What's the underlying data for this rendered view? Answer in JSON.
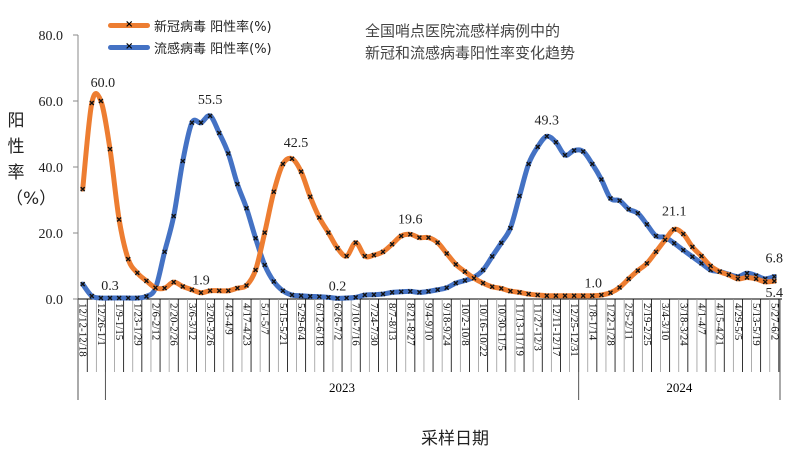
{
  "chart_data": {
    "type": "line",
    "title": [
      "全国哨点医院流感样病例中的",
      "新冠和流感病毒阳性率变化趋势"
    ],
    "xlabel": "采样日期",
    "ylabel": "阳性率（%）",
    "ylim": [
      0,
      80
    ],
    "yticks": [
      "0.0",
      "20.0",
      "40.0",
      "60.0",
      "80.0"
    ],
    "grid": false,
    "legend_position": "top-left",
    "x_tick_labels": [
      "12/12-12/18",
      "12/26-1/1",
      "1/9-1/15",
      "1/23-1/29",
      "2/6-2/12",
      "2/20-2/26",
      "3/6-3/12",
      "3/20-3/26",
      "4/3-4/9",
      "4/17-4/23",
      "5/1-5/7",
      "5/15-5/21",
      "5/29-6/4",
      "6/12-6/18",
      "6/26-7/2",
      "7/10-7/16",
      "7/24-7/30",
      "8/7-8/13",
      "8/21-8/27",
      "9/4-9/10",
      "9/18-9/24",
      "10/2-10/8",
      "10/16-10/22",
      "10/30-11/5",
      "11/13-11/19",
      "11/27-12/3",
      "12/11-12/17",
      "12/25-12/31",
      "1/8-1/14",
      "1/22-1/28",
      "2/5-2/11",
      "2/19-2/25",
      "3/4-3/10",
      "3/18-3/24",
      "4/1-4/7",
      "4/15-4/21",
      "4/29-5/5",
      "5/13-5/19",
      "5/27-6/2"
    ],
    "years": [
      "2023",
      "2024"
    ],
    "series": [
      {
        "name": "新冠病毒 阳性率(%)",
        "color": "#ED7D31",
        "values": [
          33.3,
          59.4,
          60.0,
          45.4,
          24.1,
          12.1,
          7.9,
          5.5,
          3.4,
          3.3,
          5.1,
          3.8,
          2.8,
          1.9,
          2.5,
          2.5,
          2.5,
          3.3,
          4.1,
          8.8,
          20.1,
          32.5,
          40.9,
          42.5,
          38.6,
          31.0,
          24.7,
          20.1,
          15.4,
          13.0,
          17.1,
          13.0,
          13.3,
          14.3,
          16.6,
          19.1,
          19.6,
          18.6,
          18.6,
          17.1,
          13.8,
          10.5,
          8.3,
          6.3,
          4.8,
          3.7,
          3.2,
          2.4,
          2.0,
          1.5,
          1.2,
          1.0,
          1.0,
          1.0,
          1.0,
          1.0,
          1.0,
          1.2,
          1.9,
          3.5,
          6.1,
          8.6,
          10.8,
          14.3,
          17.9,
          21.1,
          19.7,
          15.8,
          13.0,
          10.0,
          8.3,
          7.3,
          6.1,
          6.5,
          6.1,
          5.2,
          5.4
        ],
        "data_labels": [
          {
            "index": 2,
            "text": "60.0"
          },
          {
            "index": 13,
            "text": "1.9"
          },
          {
            "index": 23,
            "text": "42.5"
          },
          {
            "index": 36,
            "text": "19.6"
          },
          {
            "index": 55,
            "text": "1.0"
          },
          {
            "index": 65,
            "text": "21.1"
          },
          {
            "index": 76,
            "text": "5.4"
          }
        ]
      },
      {
        "name": "流感病毒 阳性率(%)",
        "color": "#4472C4",
        "values": [
          4.5,
          0.9,
          0.3,
          0.3,
          0.3,
          0.3,
          0.3,
          0.8,
          3.3,
          14.3,
          25.1,
          41.8,
          53.4,
          53.4,
          55.5,
          50.3,
          44.1,
          34.8,
          27.5,
          18.4,
          10.3,
          5.3,
          2.5,
          1.2,
          1.0,
          0.8,
          0.7,
          0.5,
          0.2,
          0.3,
          0.5,
          1.2,
          1.3,
          1.5,
          2.0,
          2.2,
          2.3,
          2.0,
          2.3,
          2.8,
          3.4,
          4.8,
          5.6,
          6.6,
          8.8,
          12.9,
          17.0,
          21.5,
          31.2,
          40.9,
          46.1,
          49.3,
          47.5,
          43.6,
          45.0,
          44.7,
          40.9,
          36.2,
          30.5,
          29.8,
          27.2,
          26.0,
          22.6,
          19.1,
          18.7,
          16.9,
          14.8,
          12.8,
          10.8,
          8.8,
          8.3,
          7.5,
          6.8,
          7.8,
          7.1,
          6.1,
          6.8
        ],
        "data_labels": [
          {
            "index": 3,
            "text": "0.3"
          },
          {
            "index": 14,
            "text": "55.5"
          },
          {
            "index": 28,
            "text": "0.2"
          },
          {
            "index": 51,
            "text": "49.3"
          },
          {
            "index": 76,
            "text": "6.8"
          }
        ]
      }
    ]
  }
}
